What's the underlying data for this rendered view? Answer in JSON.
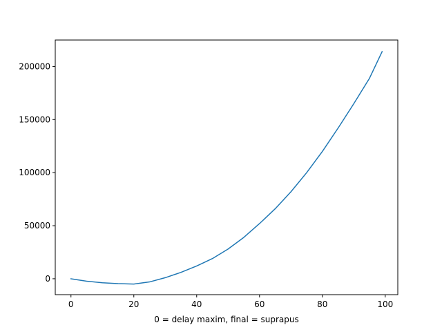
{
  "chart_data": {
    "type": "line",
    "title": "",
    "xlabel": "0 = delay maxim, final = suprapus",
    "ylabel": "",
    "xlim": [
      -5,
      104
    ],
    "ylim": [
      -15000,
      225000
    ],
    "x_ticks": [
      0,
      20,
      40,
      60,
      80,
      100
    ],
    "y_ticks": [
      0,
      50000,
      100000,
      150000,
      200000
    ],
    "grid": false,
    "legend": "none",
    "series": [
      {
        "color": "#1f77b4",
        "x": [
          0,
          5,
          10,
          15,
          20,
          25,
          30,
          35,
          40,
          45,
          50,
          55,
          60,
          65,
          70,
          75,
          80,
          85,
          90,
          95,
          99
        ],
        "y": [
          0,
          -2300,
          -3800,
          -4600,
          -5000,
          -3000,
          1000,
          6000,
          12000,
          19000,
          28000,
          39000,
          52000,
          66000,
          82000,
          100000,
          120000,
          142000,
          165000,
          189000,
          214000
        ]
      }
    ]
  }
}
